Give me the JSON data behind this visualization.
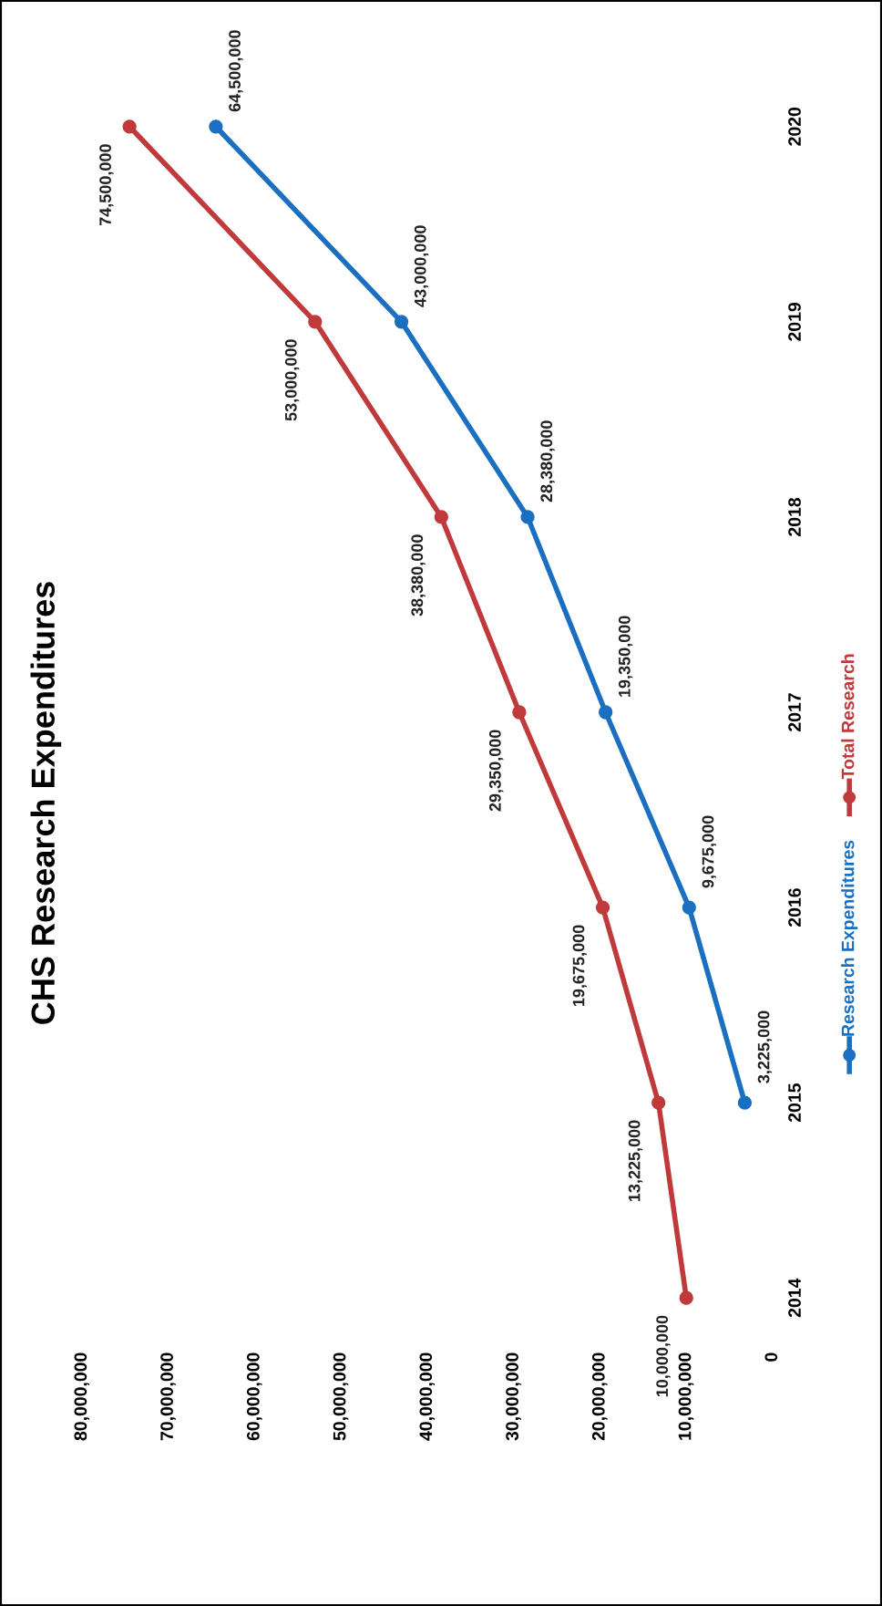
{
  "chart_data": {
    "type": "line",
    "title": "CHS Research Expenditures",
    "orientation": "horizontal",
    "categories": [
      "2020",
      "2019",
      "2018",
      "2017",
      "2016",
      "2015",
      "2014"
    ],
    "series": [
      {
        "name": "Research Expenditures",
        "color": "#1a6fc0",
        "values": [
          64500000,
          43000000,
          28380000,
          19350000,
          9675000,
          3225000,
          null
        ],
        "value_labels": [
          "64,500,000",
          "43,000,000",
          "28,380,000",
          "19,350,000",
          "9,675,000",
          "3,225,000",
          null
        ]
      },
      {
        "name": "Total Research",
        "color": "#c0393b",
        "values": [
          74500000,
          53000000,
          38380000,
          29350000,
          19675000,
          13225000,
          10000000
        ],
        "value_labels": [
          "74,500,000",
          "53,000,000",
          "38,380,000",
          "29,350,000",
          "19,675,000",
          "13,225,000",
          "10,000,000"
        ]
      }
    ],
    "xlim": [
      80000000,
      0
    ],
    "xticks": [
      {
        "value": 80000000,
        "label": "80,000,000"
      },
      {
        "value": 70000000,
        "label": "70,000,000"
      },
      {
        "value": 60000000,
        "label": "60,000,000"
      },
      {
        "value": 50000000,
        "label": "50,000,000"
      },
      {
        "value": 40000000,
        "label": "40,000,000"
      },
      {
        "value": 30000000,
        "label": "30,000,000"
      },
      {
        "value": 20000000,
        "label": "20,000,000"
      },
      {
        "value": 10000000,
        "label": "10,000,000"
      },
      0
    ],
    "data_labels": true,
    "marker": "circle",
    "line_style": "solid",
    "legend": "right",
    "grid": false
  }
}
